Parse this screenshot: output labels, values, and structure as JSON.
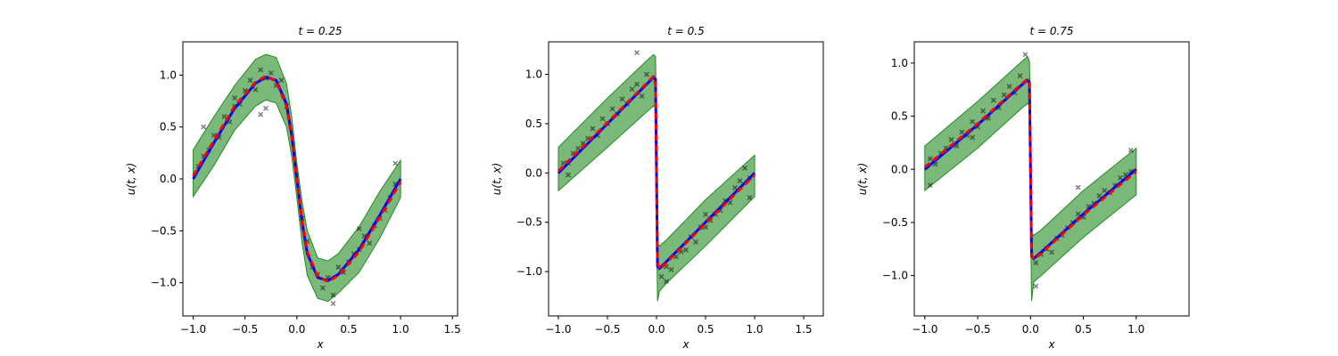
{
  "figure": {
    "title": ""
  },
  "chart_data": [
    {
      "type": "line",
      "title": "t = 0.25",
      "xlabel": "x",
      "ylabel": "u(t, x)",
      "xlim": [
        -1.1,
        1.55
      ],
      "ylim": [
        -1.32,
        1.32
      ],
      "xticks": [
        -1.0,
        -0.5,
        0.0,
        0.5,
        1.0,
        1.5
      ],
      "xtick_labels": [
        "−1.0",
        "−0.5",
        "0.0",
        "0.5",
        "1.0",
        "1.5"
      ],
      "yticks": [
        -1.0,
        -0.5,
        0.0,
        0.5,
        1.0
      ],
      "ytick_labels": [
        "−1.0",
        "−0.5",
        "0.0",
        "0.5",
        "1.0"
      ],
      "x": [
        -1.0,
        -0.8,
        -0.6,
        -0.4,
        -0.3,
        -0.2,
        -0.1,
        -0.05,
        0.0,
        0.05,
        0.1,
        0.2,
        0.3,
        0.4,
        0.6,
        0.8,
        1.0
      ],
      "series": [
        {
          "values": [
            0.0,
            0.35,
            0.68,
            0.92,
            0.98,
            0.95,
            0.72,
            0.42,
            0.0,
            -0.42,
            -0.72,
            -0.95,
            -0.98,
            -0.92,
            -0.68,
            -0.35,
            0.0
          ],
          "color": "#0000ff",
          "style": "solid"
        },
        {
          "values": [
            0.03,
            0.37,
            0.7,
            0.93,
            0.99,
            0.94,
            0.7,
            0.4,
            0.0,
            -0.4,
            -0.7,
            -0.94,
            -0.99,
            -0.93,
            -0.7,
            -0.37,
            -0.03
          ],
          "color": "#ff0000",
          "style": "dashed"
        }
      ],
      "band": {
        "color": "#228b22",
        "upper": [
          0.28,
          0.6,
          0.9,
          1.15,
          1.2,
          1.17,
          0.92,
          0.6,
          0.15,
          -0.22,
          -0.5,
          -0.76,
          -0.79,
          -0.72,
          -0.46,
          -0.12,
          0.18
        ],
        "lower": [
          -0.17,
          0.13,
          0.47,
          0.7,
          0.76,
          0.73,
          0.5,
          0.22,
          -0.18,
          -0.62,
          -0.93,
          -1.15,
          -1.18,
          -1.1,
          -0.9,
          -0.57,
          -0.18
        ]
      },
      "samples": {
        "x": [
          -0.95,
          -0.9,
          -0.85,
          -0.8,
          -0.75,
          -0.7,
          -0.65,
          -0.6,
          -0.55,
          -0.5,
          -0.45,
          -0.4,
          -0.35,
          -0.3,
          -0.25,
          -0.2,
          -0.15,
          -0.1,
          0.05,
          0.1,
          0.15,
          0.2,
          0.25,
          0.3,
          0.35,
          0.4,
          0.45,
          0.5,
          0.55,
          0.6,
          0.65,
          0.7,
          0.75,
          0.8,
          0.85,
          0.9,
          0.95,
          -0.35,
          -0.3,
          0.35,
          -0.9,
          -0.6,
          0.6,
          0.95
        ],
        "y": [
          0.12,
          0.22,
          0.28,
          0.42,
          0.4,
          0.6,
          0.55,
          0.78,
          0.72,
          0.85,
          0.95,
          0.86,
          1.05,
          0.97,
          1.02,
          0.9,
          0.95,
          0.7,
          -0.38,
          -0.6,
          -0.85,
          -0.92,
          -1.05,
          -0.95,
          -1.12,
          -0.85,
          -0.9,
          -0.8,
          -0.72,
          -0.68,
          -0.55,
          -0.62,
          -0.45,
          -0.38,
          -0.3,
          -0.18,
          -0.05,
          0.62,
          0.68,
          -1.2,
          0.5,
          0.7,
          -0.48,
          0.15
        ]
      }
    },
    {
      "type": "line",
      "title": "t = 0.5",
      "xlabel": "x",
      "ylabel": "u(t, x)",
      "xlim": [
        -1.1,
        1.7
      ],
      "ylim": [
        -1.45,
        1.33
      ],
      "xticks": [
        -1.0,
        -0.5,
        0.0,
        0.5,
        1.0,
        1.5
      ],
      "xtick_labels": [
        "−1.0",
        "−0.5",
        "0.0",
        "0.5",
        "1.0",
        "1.5"
      ],
      "yticks": [
        -1.0,
        -0.5,
        0.0,
        0.5,
        1.0
      ],
      "ytick_labels": [
        "−1.0",
        "−0.5",
        "0.0",
        "0.5",
        "1.0"
      ],
      "x": [
        -1.0,
        -0.5,
        -0.1,
        -0.03,
        -0.01,
        0.0,
        0.01,
        0.03,
        0.1,
        0.5,
        1.0
      ],
      "series": [
        {
          "values": [
            0.0,
            0.5,
            0.9,
            0.97,
            0.95,
            0.0,
            -0.95,
            -0.97,
            -0.9,
            -0.5,
            0.0
          ],
          "color": "#0000ff",
          "style": "solid"
        },
        {
          "values": [
            0.02,
            0.51,
            0.91,
            0.98,
            0.9,
            0.0,
            -0.9,
            -0.98,
            -0.91,
            -0.51,
            -0.02
          ],
          "color": "#ff0000",
          "style": "dashed"
        }
      ],
      "band": {
        "color": "#228b22",
        "upper": [
          0.26,
          0.76,
          1.14,
          1.2,
          1.18,
          0.55,
          -0.72,
          -0.74,
          -0.68,
          -0.27,
          0.18
        ],
        "lower": [
          -0.18,
          0.26,
          0.62,
          0.68,
          0.66,
          -0.45,
          -1.3,
          -1.2,
          -1.12,
          -0.74,
          -0.24
        ]
      },
      "samples": {
        "x": [
          -0.95,
          -0.9,
          -0.85,
          -0.8,
          -0.75,
          -0.7,
          -0.65,
          -0.6,
          -0.55,
          -0.5,
          -0.45,
          -0.4,
          -0.35,
          -0.3,
          -0.25,
          -0.2,
          -0.15,
          -0.1,
          0.05,
          0.1,
          0.15,
          0.2,
          0.25,
          0.3,
          0.35,
          0.4,
          0.45,
          0.5,
          0.55,
          0.6,
          0.65,
          0.7,
          0.75,
          0.8,
          0.85,
          0.9,
          0.95,
          -0.2,
          0.1,
          -0.9,
          0.5,
          0.95
        ],
        "y": [
          0.1,
          0.1,
          0.2,
          0.25,
          0.3,
          0.35,
          0.45,
          0.38,
          0.55,
          0.5,
          0.65,
          0.6,
          0.75,
          0.7,
          0.85,
          0.9,
          0.78,
          1.0,
          -1.05,
          -0.95,
          -0.98,
          -0.85,
          -0.8,
          -0.78,
          -0.65,
          -0.7,
          -0.55,
          -0.55,
          -0.48,
          -0.42,
          -0.38,
          -0.28,
          -0.3,
          -0.15,
          -0.08,
          0.05,
          -0.05,
          1.22,
          -1.1,
          -0.02,
          -0.42,
          -0.25
        ]
      }
    },
    {
      "type": "line",
      "title": "t = 0.75",
      "xlabel": "x",
      "ylabel": "u(t, x)",
      "xlim": [
        -1.1,
        1.5
      ],
      "ylim": [
        -1.38,
        1.2
      ],
      "xticks": [
        -1.0,
        -0.5,
        0.0,
        0.5,
        1.0
      ],
      "xtick_labels": [
        "−1.0",
        "−0.5",
        "0.0",
        "0.5",
        "1.0"
      ],
      "yticks": [
        -1.0,
        -0.5,
        0.0,
        0.5,
        1.0
      ],
      "ytick_labels": [
        "−1.0",
        "−0.5",
        "0.0",
        "0.5",
        "1.0"
      ],
      "x": [
        -1.0,
        -0.5,
        -0.1,
        -0.03,
        -0.01,
        0.0,
        0.01,
        0.03,
        0.1,
        0.5,
        1.0
      ],
      "series": [
        {
          "values": [
            0.0,
            0.42,
            0.78,
            0.84,
            0.82,
            0.0,
            -0.82,
            -0.84,
            -0.78,
            -0.42,
            0.0
          ],
          "color": "#0000ff",
          "style": "solid"
        },
        {
          "values": [
            0.02,
            0.43,
            0.79,
            0.85,
            0.8,
            0.0,
            -0.8,
            -0.85,
            -0.79,
            -0.43,
            -0.02
          ],
          "color": "#ff0000",
          "style": "dashed"
        }
      ],
      "band": {
        "color": "#228b22",
        "upper": [
          0.22,
          0.64,
          1.0,
          1.06,
          1.02,
          0.5,
          -0.6,
          -0.62,
          -0.57,
          -0.2,
          0.2
        ],
        "lower": [
          -0.2,
          0.2,
          0.56,
          0.62,
          0.6,
          -0.45,
          -1.24,
          -1.06,
          -1.0,
          -0.64,
          -0.24
        ]
      },
      "samples": {
        "x": [
          -0.95,
          -0.9,
          -0.85,
          -0.8,
          -0.75,
          -0.7,
          -0.65,
          -0.6,
          -0.55,
          -0.5,
          -0.45,
          -0.4,
          -0.35,
          -0.3,
          -0.25,
          -0.2,
          -0.15,
          -0.1,
          0.05,
          0.1,
          0.15,
          0.2,
          0.25,
          0.3,
          0.35,
          0.4,
          0.45,
          0.5,
          0.55,
          0.6,
          0.65,
          0.7,
          0.75,
          0.8,
          0.85,
          0.9,
          0.95,
          -0.05,
          0.05,
          -0.95,
          0.45,
          0.95,
          -0.55
        ],
        "y": [
          0.1,
          0.05,
          0.15,
          0.2,
          0.28,
          0.22,
          0.35,
          0.32,
          0.45,
          0.4,
          0.55,
          0.48,
          0.65,
          0.58,
          0.7,
          0.78,
          0.72,
          0.88,
          -0.88,
          -0.8,
          -0.75,
          -0.78,
          -0.65,
          -0.62,
          -0.55,
          -0.5,
          -0.42,
          -0.45,
          -0.35,
          -0.32,
          -0.25,
          -0.2,
          -0.22,
          -0.15,
          -0.08,
          -0.05,
          -0.02,
          1.08,
          -1.1,
          -0.15,
          -0.17,
          0.18,
          0.3
        ]
      }
    }
  ]
}
